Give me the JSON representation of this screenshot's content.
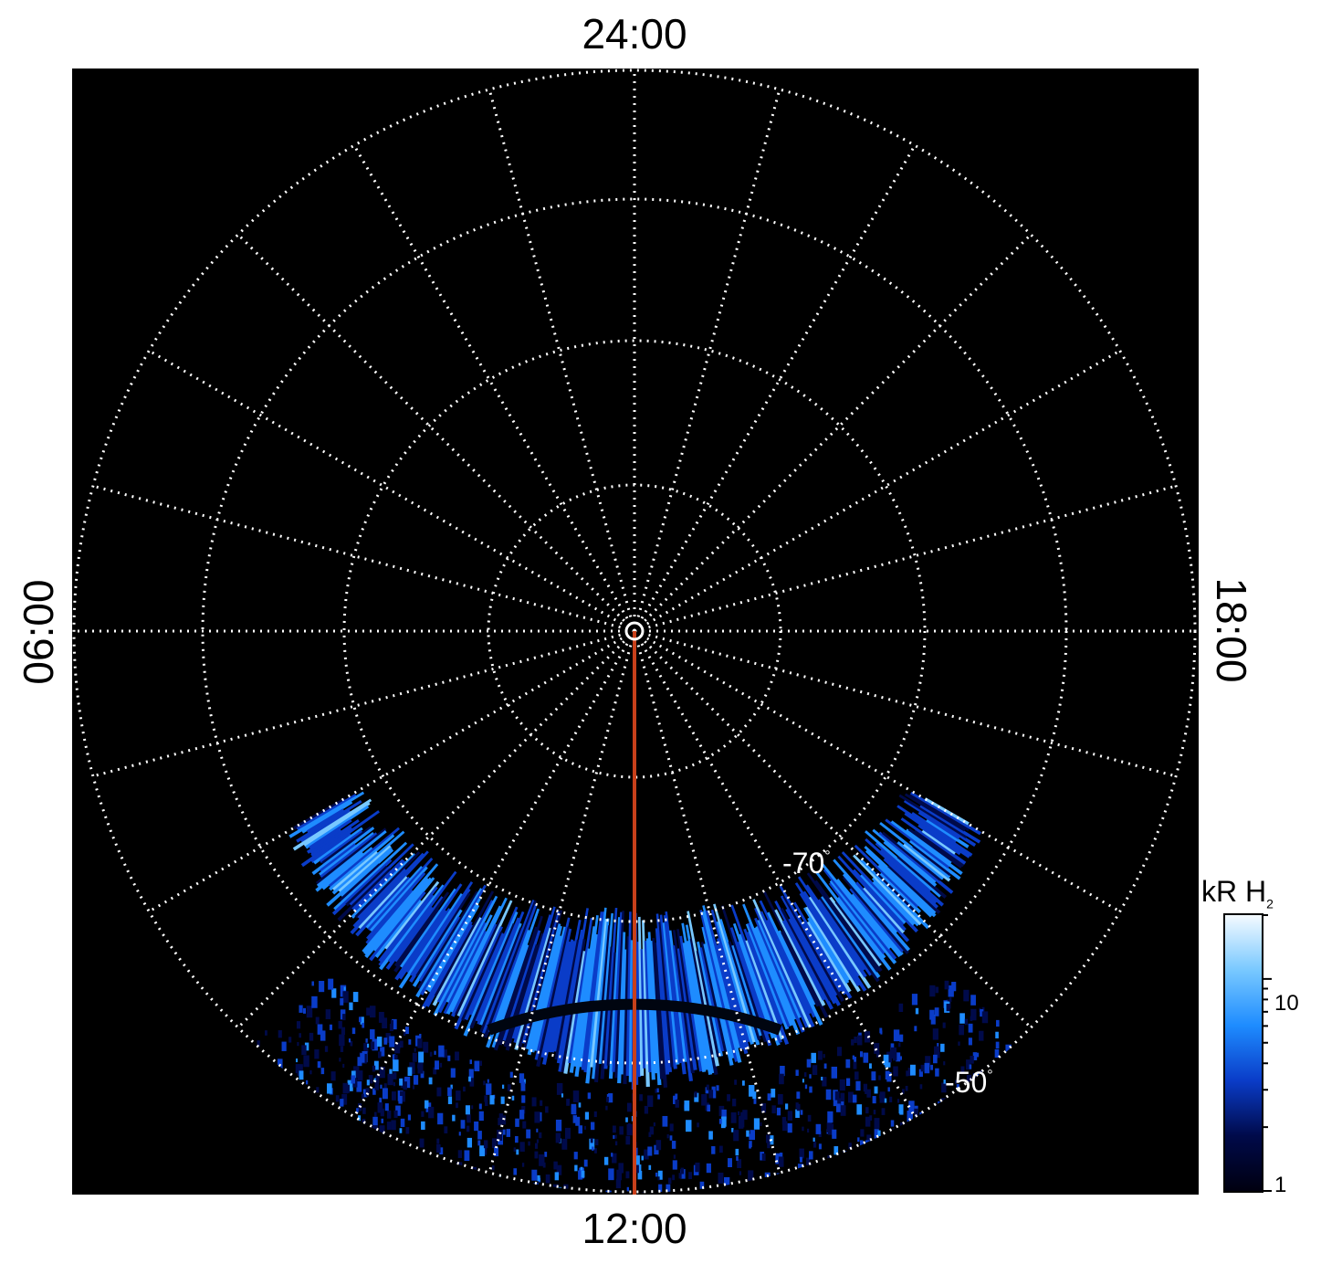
{
  "local_time_labels": {
    "top": "24:00",
    "bottom": "12:00",
    "left": "06:00",
    "right": "18:00"
  },
  "latitude_labels": {
    "inner": "-70",
    "outer": "-50",
    "degree_symbol": "°"
  },
  "colorbar": {
    "unit_prefix": "kR H",
    "unit_subscript": "2",
    "scale": "log",
    "range": [
      1,
      20
    ],
    "tick_labels": [
      "10",
      "1"
    ]
  },
  "colors": {
    "background": "#000000",
    "grid": "#ffffff",
    "meridian_line": "#c8401a",
    "colormap": [
      "#000010",
      "#000a4a",
      "#0a3cc8",
      "#1e8cff",
      "#78c8ff",
      "#f4faff"
    ]
  },
  "grid": {
    "style": "dotted",
    "meridian_step_hours": 1,
    "latitude_circles": 5
  },
  "projection": "polar, south pole centred",
  "emission_region": {
    "visible_local_times": "approx. 07:00–17:00 (dayside)",
    "level_shown": "bright band ~10–20 kR near the -70° to -60° circles, dimmer patches toward -50°"
  }
}
